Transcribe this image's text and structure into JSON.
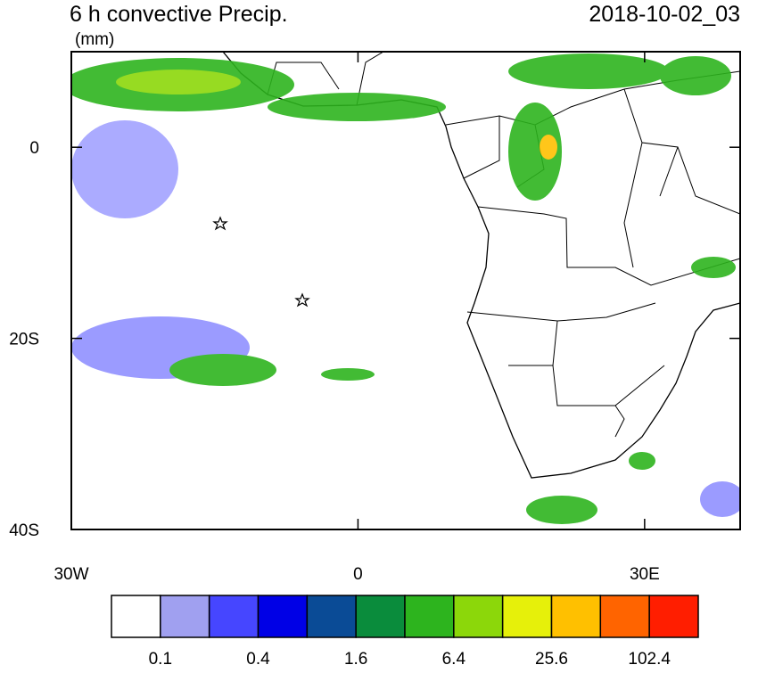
{
  "title": "6 h convective Precip.",
  "units": "(mm)",
  "valid_time": "2018-10-02_03",
  "map": {
    "lon_range": [
      -30,
      40
    ],
    "lat_range": [
      -40,
      10
    ],
    "lat_ticks": [
      {
        "value": 0,
        "label": "0"
      },
      {
        "value": -20,
        "label": "20S"
      },
      {
        "value": -40,
        "label": "40S"
      }
    ],
    "lon_ticks": [
      {
        "value": -30,
        "label": "30W"
      },
      {
        "value": 0,
        "label": "0"
      },
      {
        "value": 30,
        "label": "30E"
      }
    ]
  },
  "colorbar": {
    "colors": [
      "#ffffff",
      "#a0a0f0",
      "#4646ff",
      "#0000e6",
      "#0a4b96",
      "#0a8c3c",
      "#2db41e",
      "#8cd70a",
      "#e6f00a",
      "#ffc000",
      "#ff6400",
      "#ff1e00"
    ],
    "labels": [
      "0.1",
      "0.4",
      "1.6",
      "6.4",
      "25.6",
      "102.4"
    ]
  }
}
